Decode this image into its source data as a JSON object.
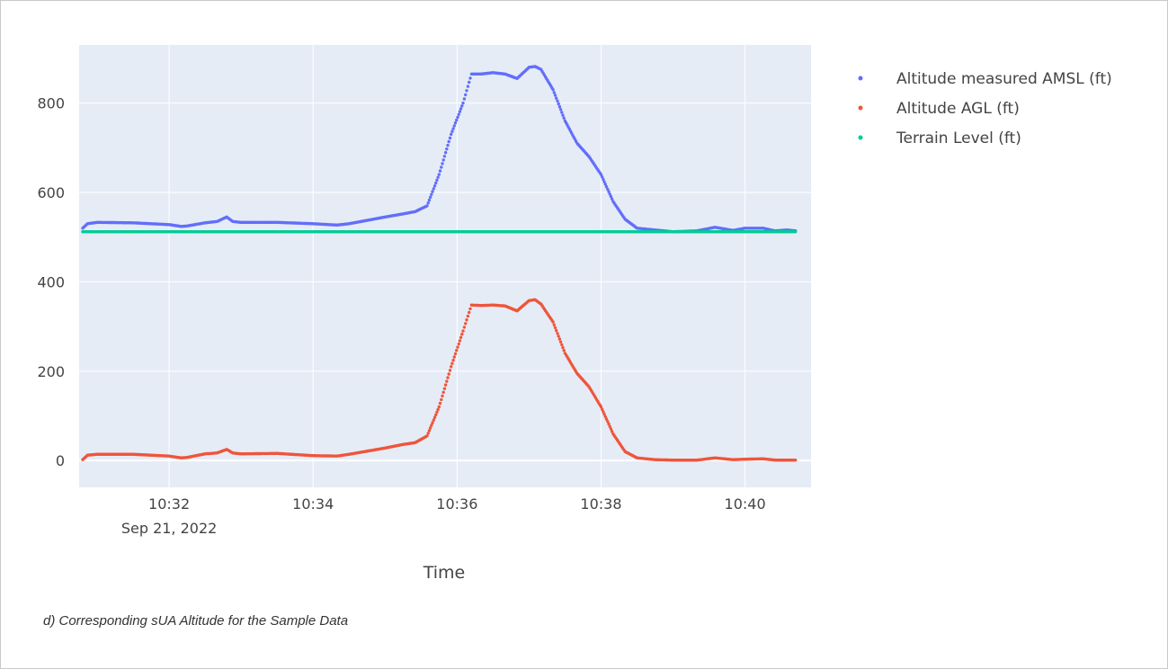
{
  "caption": "d) Corresponding sUA Altitude for the Sample Data",
  "chart_data": {
    "type": "scatter",
    "xlabel": "Time",
    "ylabel": "",
    "x_range": [
      "10:30:45",
      "10:40:55"
    ],
    "ylim": [
      -60,
      930
    ],
    "x_ticks": [
      {
        "time": "10:32:00",
        "label": "10:32",
        "sublabel": "Sep 21, 2022"
      },
      {
        "time": "10:34:00",
        "label": "10:34"
      },
      {
        "time": "10:36:00",
        "label": "10:36"
      },
      {
        "time": "10:38:00",
        "label": "10:38"
      },
      {
        "time": "10:40:00",
        "label": "10:40"
      }
    ],
    "y_ticks": [
      0,
      200,
      400,
      600,
      800
    ],
    "grid": true,
    "legend_position": "top-right",
    "colors": {
      "plot_bg": "#e5ecf6",
      "grid": "#ffffff"
    },
    "series": [
      {
        "name": "Altitude measured AMSL (ft)",
        "color": "#636efa",
        "points": [
          [
            "10:30:48",
            520
          ],
          [
            "10:30:52",
            530
          ],
          [
            "10:31:00",
            533
          ],
          [
            "10:31:30",
            532
          ],
          [
            "10:32:00",
            528
          ],
          [
            "10:32:10",
            524
          ],
          [
            "10:32:15",
            525
          ],
          [
            "10:32:30",
            532
          ],
          [
            "10:32:40",
            535
          ],
          [
            "10:32:48",
            545
          ],
          [
            "10:32:53",
            535
          ],
          [
            "10:33:00",
            533
          ],
          [
            "10:33:30",
            533
          ],
          [
            "10:34:00",
            530
          ],
          [
            "10:34:20",
            527
          ],
          [
            "10:34:30",
            530
          ],
          [
            "10:35:00",
            545
          ],
          [
            "10:35:15",
            552
          ],
          [
            "10:35:25",
            557
          ],
          [
            "10:35:35",
            570
          ],
          [
            "10:35:45",
            640
          ],
          [
            "10:35:55",
            730
          ],
          [
            "10:36:05",
            800
          ],
          [
            "10:36:12",
            865
          ],
          [
            "10:36:20",
            865
          ],
          [
            "10:36:30",
            868
          ],
          [
            "10:36:40",
            865
          ],
          [
            "10:36:50",
            855
          ],
          [
            "10:37:00",
            880
          ],
          [
            "10:37:05",
            882
          ],
          [
            "10:37:10",
            875
          ],
          [
            "10:37:20",
            830
          ],
          [
            "10:37:30",
            760
          ],
          [
            "10:37:40",
            710
          ],
          [
            "10:37:50",
            680
          ],
          [
            "10:38:00",
            640
          ],
          [
            "10:38:10",
            580
          ],
          [
            "10:38:20",
            540
          ],
          [
            "10:38:30",
            520
          ],
          [
            "10:38:45",
            516
          ],
          [
            "10:39:00",
            512
          ],
          [
            "10:39:20",
            514
          ],
          [
            "10:39:35",
            522
          ],
          [
            "10:39:50",
            515
          ],
          [
            "10:40:00",
            520
          ],
          [
            "10:40:15",
            520
          ],
          [
            "10:40:25",
            514
          ],
          [
            "10:40:35",
            516
          ],
          [
            "10:40:42",
            514
          ]
        ]
      },
      {
        "name": "Altitude AGL (ft)",
        "color": "#ef553b",
        "points": [
          [
            "10:30:48",
            2
          ],
          [
            "10:30:52",
            12
          ],
          [
            "10:31:00",
            14
          ],
          [
            "10:31:30",
            14
          ],
          [
            "10:32:00",
            10
          ],
          [
            "10:32:10",
            6
          ],
          [
            "10:32:15",
            7
          ],
          [
            "10:32:30",
            15
          ],
          [
            "10:32:40",
            17
          ],
          [
            "10:32:48",
            25
          ],
          [
            "10:32:53",
            17
          ],
          [
            "10:33:00",
            15
          ],
          [
            "10:33:30",
            16
          ],
          [
            "10:34:00",
            11
          ],
          [
            "10:34:20",
            10
          ],
          [
            "10:34:30",
            14
          ],
          [
            "10:35:00",
            28
          ],
          [
            "10:35:15",
            36
          ],
          [
            "10:35:25",
            40
          ],
          [
            "10:35:35",
            55
          ],
          [
            "10:35:45",
            120
          ],
          [
            "10:35:55",
            210
          ],
          [
            "10:36:05",
            290
          ],
          [
            "10:36:12",
            348
          ],
          [
            "10:36:20",
            347
          ],
          [
            "10:36:30",
            348
          ],
          [
            "10:36:40",
            346
          ],
          [
            "10:36:50",
            335
          ],
          [
            "10:37:00",
            358
          ],
          [
            "10:37:05",
            360
          ],
          [
            "10:37:10",
            350
          ],
          [
            "10:37:20",
            310
          ],
          [
            "10:37:30",
            240
          ],
          [
            "10:37:40",
            195
          ],
          [
            "10:37:50",
            165
          ],
          [
            "10:38:00",
            120
          ],
          [
            "10:38:10",
            60
          ],
          [
            "10:38:20",
            20
          ],
          [
            "10:38:30",
            6
          ],
          [
            "10:38:45",
            2
          ],
          [
            "10:39:00",
            1
          ],
          [
            "10:39:20",
            1
          ],
          [
            "10:39:35",
            6
          ],
          [
            "10:39:50",
            2
          ],
          [
            "10:40:00",
            3
          ],
          [
            "10:40:15",
            4
          ],
          [
            "10:40:25",
            1
          ],
          [
            "10:40:35",
            1
          ],
          [
            "10:40:42",
            1
          ]
        ]
      },
      {
        "name": "Terrain Level (ft)",
        "color": "#00cc96",
        "points": [
          [
            "10:30:48",
            512
          ],
          [
            "10:40:42",
            512
          ]
        ]
      }
    ]
  }
}
